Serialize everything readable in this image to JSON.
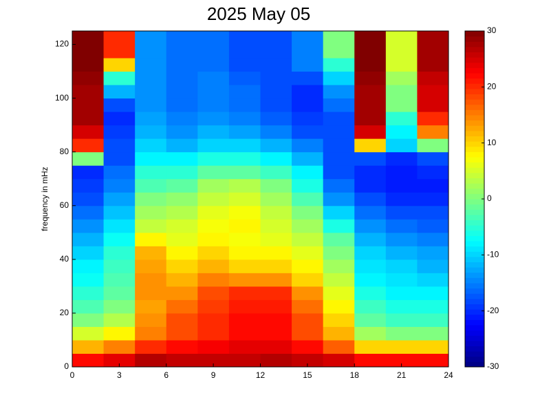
{
  "chart_data": {
    "type": "heatmap",
    "title": "2025 May 05",
    "ylabel": "frequency in mHz",
    "colormap": "jet",
    "xbins": [
      0,
      2,
      4,
      6,
      8,
      10,
      12,
      14,
      16,
      18,
      20,
      22,
      24
    ],
    "ybins": [
      0,
      5,
      10,
      15,
      20,
      25,
      30,
      35,
      40,
      45,
      50,
      55,
      60,
      65,
      70,
      75,
      80,
      85,
      90,
      95,
      100,
      105,
      110,
      115,
      120,
      125
    ],
    "values": [
      [
        22,
        24,
        27,
        26,
        26,
        26,
        27,
        26,
        25,
        22,
        22,
        22
      ],
      [
        12,
        15,
        20,
        22,
        23,
        24,
        24,
        22,
        17,
        10,
        10,
        10
      ],
      [
        5,
        8,
        15,
        18,
        20,
        22,
        22,
        18,
        12,
        2,
        0,
        0
      ],
      [
        0,
        3,
        14,
        18,
        20,
        22,
        22,
        18,
        10,
        -2,
        -4,
        -4
      ],
      [
        -3,
        0,
        13,
        16,
        19,
        21,
        21,
        16,
        8,
        -4,
        -6,
        -6
      ],
      [
        -5,
        -2,
        14,
        14,
        18,
        20,
        20,
        14,
        6,
        -6,
        -8,
        -8
      ],
      [
        -7,
        -3,
        14,
        12,
        15,
        14,
        14,
        10,
        4,
        -8,
        -9,
        -10
      ],
      [
        -8,
        -4,
        13,
        10,
        12,
        10,
        10,
        8,
        2,
        -9,
        -10,
        -12
      ],
      [
        -10,
        -5,
        12,
        8,
        10,
        8,
        8,
        6,
        0,
        -10,
        -12,
        -13
      ],
      [
        -12,
        -7,
        8,
        6,
        8,
        7,
        6,
        4,
        -2,
        -12,
        -14,
        -15
      ],
      [
        -14,
        -9,
        4,
        5,
        7,
        8,
        5,
        2,
        -6,
        -14,
        -16,
        -17
      ],
      [
        -16,
        -11,
        2,
        3,
        6,
        7,
        4,
        0,
        -10,
        -16,
        -18,
        -18
      ],
      [
        -18,
        -13,
        0,
        1,
        4,
        5,
        2,
        -3,
        -14,
        -18,
        -20,
        -20
      ],
      [
        -19,
        -15,
        -3,
        -2,
        2,
        3,
        0,
        -6,
        -16,
        -20,
        -21,
        -21
      ],
      [
        -20,
        -16,
        -5,
        -5,
        -2,
        -2,
        -4,
        -8,
        -18,
        -20,
        -21,
        -20
      ],
      [
        0,
        -18,
        -8,
        -8,
        -6,
        -6,
        -8,
        -12,
        -18,
        -18,
        -20,
        -18
      ],
      [
        20,
        -18,
        -10,
        -12,
        -10,
        -10,
        -12,
        -15,
        -18,
        10,
        -10,
        0
      ],
      [
        25,
        -19,
        -12,
        -14,
        -12,
        -13,
        -15,
        -18,
        -18,
        25,
        -8,
        15
      ],
      [
        28,
        -20,
        -13,
        -15,
        -14,
        -15,
        -17,
        -19,
        -18,
        28,
        -5,
        20
      ],
      [
        28,
        -18,
        -14,
        -16,
        -15,
        -16,
        -18,
        -20,
        -16,
        28,
        0,
        25
      ],
      [
        28,
        -12,
        -14,
        -16,
        -15,
        -16,
        -18,
        -20,
        -14,
        28,
        0,
        25
      ],
      [
        29,
        -5,
        -14,
        -16,
        -15,
        -17,
        -18,
        -18,
        -10,
        29,
        2,
        26
      ],
      [
        30,
        10,
        -14,
        -16,
        -16,
        -18,
        -18,
        -15,
        -5,
        30,
        5,
        28
      ],
      [
        30,
        20,
        -14,
        -16,
        -16,
        -18,
        -18,
        -15,
        0,
        30,
        5,
        28
      ],
      [
        30,
        20,
        -14,
        -16,
        -16,
        -18,
        -18,
        -15,
        0,
        30,
        5,
        28
      ]
    ],
    "xlim": [
      0,
      24
    ],
    "xticks": [
      0,
      3,
      6,
      9,
      12,
      15,
      18,
      21,
      24
    ],
    "ylim": [
      0,
      125
    ],
    "yticks": [
      0,
      20,
      40,
      60,
      80,
      100,
      120
    ],
    "clim": [
      -30,
      30
    ],
    "cticks": [
      -30,
      -20,
      -10,
      0,
      10,
      20,
      30
    ]
  }
}
